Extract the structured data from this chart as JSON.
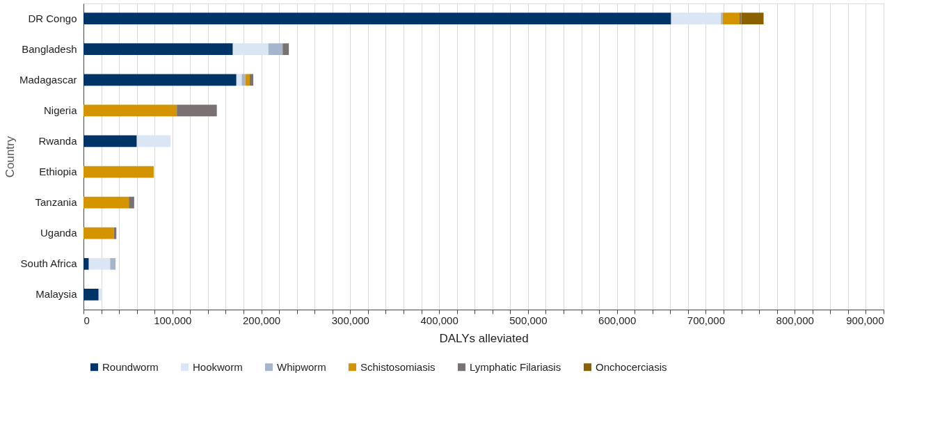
{
  "chart_data": {
    "type": "bar",
    "orientation": "horizontal",
    "stacked": true,
    "xlabel": "DALYs alleviated",
    "ylabel": "Country",
    "categories": [
      "DR Congo",
      "Bangladesh",
      "Madagascar",
      "Nigeria",
      "Rwanda",
      "Ethiopia",
      "Tanzania",
      "Uganda",
      "South Africa",
      "Malaysia"
    ],
    "series": [
      {
        "name": "Roundworm",
        "color": "#003366",
        "values": [
          661000,
          168000,
          172000,
          0,
          60000,
          0,
          0,
          0,
          6000,
          17000
        ]
      },
      {
        "name": "Hookworm",
        "color": "#dae6f3",
        "values": [
          56000,
          40000,
          6000,
          0,
          38000,
          0,
          0,
          0,
          24000,
          4000
        ]
      },
      {
        "name": "Whipworm",
        "color": "#a5b5cc",
        "values": [
          2000,
          16000,
          4000,
          0,
          0,
          0,
          0,
          0,
          6000,
          0
        ]
      },
      {
        "name": "Schistosomiasis",
        "color": "#d39400",
        "values": [
          19000,
          0,
          5000,
          105000,
          0,
          79000,
          51000,
          34000,
          0,
          0
        ]
      },
      {
        "name": "Lymphatic Filariasis",
        "color": "#7a7272",
        "values": [
          2000,
          7000,
          4000,
          45000,
          0,
          0,
          6000,
          3000,
          0,
          0
        ]
      },
      {
        "name": "Onchocerciasis",
        "color": "#8b6100",
        "values": [
          25000,
          0,
          0,
          0,
          0,
          0,
          0,
          0,
          0,
          0
        ]
      }
    ],
    "xlim": [
      0,
      900000
    ],
    "xticks": [
      0,
      {
        "value": 20000,
        "label": null
      },
      {
        "value": 40000,
        "label": null
      },
      {
        "value": 60000,
        "label": null
      },
      {
        "value": 80000,
        "label": null
      },
      {
        "value": 100000,
        "label": "100,000"
      },
      {
        "value": 120000,
        "label": null
      },
      {
        "value": 140000,
        "label": null
      },
      {
        "value": 160000,
        "label": null
      },
      {
        "value": 180000,
        "label": null
      },
      {
        "value": 200000,
        "label": "200,000"
      },
      {
        "value": 220000,
        "label": null
      },
      {
        "value": 240000,
        "label": null
      },
      {
        "value": 260000,
        "label": null
      },
      {
        "value": 280000,
        "label": null
      },
      {
        "value": 300000,
        "label": "300,000"
      },
      {
        "value": 320000,
        "label": null
      },
      {
        "value": 340000,
        "label": null
      },
      {
        "value": 360000,
        "label": null
      },
      {
        "value": 380000,
        "label": null
      },
      {
        "value": 400000,
        "label": "400,000"
      },
      {
        "value": 420000,
        "label": null
      },
      {
        "value": 440000,
        "label": null
      },
      {
        "value": 460000,
        "label": null
      },
      {
        "value": 480000,
        "label": null
      },
      {
        "value": 500000,
        "label": "500,000"
      },
      {
        "value": 520000,
        "label": null
      },
      {
        "value": 540000,
        "label": null
      },
      {
        "value": 560000,
        "label": null
      },
      {
        "value": 580000,
        "label": null
      },
      {
        "value": 600000,
        "label": "600,000"
      },
      {
        "value": 620000,
        "label": null
      },
      {
        "value": 640000,
        "label": null
      },
      {
        "value": 660000,
        "label": null
      },
      {
        "value": 680000,
        "label": null
      },
      {
        "value": 700000,
        "label": "700,000"
      },
      {
        "value": 720000,
        "label": null
      },
      {
        "value": 740000,
        "label": null
      },
      {
        "value": 760000,
        "label": null
      },
      {
        "value": 780000,
        "label": null
      },
      {
        "value": 800000,
        "label": "800,000"
      },
      {
        "value": 820000,
        "label": null
      },
      {
        "value": 840000,
        "label": null
      },
      {
        "value": 860000,
        "label": null
      },
      {
        "value": 880000,
        "label": null
      },
      {
        "value": 900000,
        "label": "900,000"
      }
    ],
    "grid": "x",
    "legend": "bottom"
  }
}
